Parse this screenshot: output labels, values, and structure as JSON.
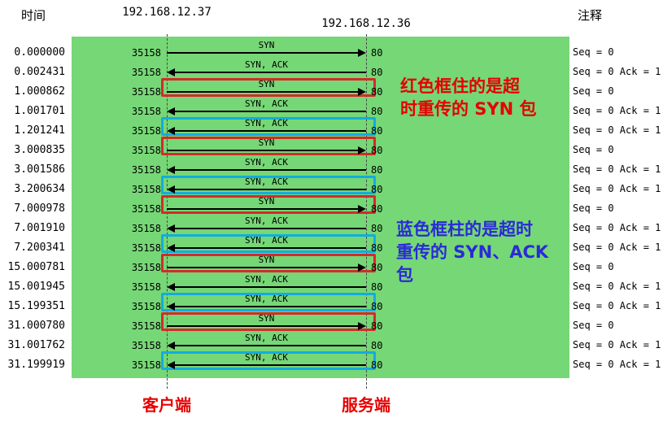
{
  "header": {
    "time_label": "时间",
    "client_ip": "192.168.12.37",
    "server_ip": "192.168.12.36",
    "comments_label": "注释"
  },
  "footer": {
    "client_label": "客户端",
    "server_label": "服务端"
  },
  "annotations": {
    "red_note": "红色框住的是超\n时重传的 SYN 包",
    "blue_note": "蓝色框柱的是超时\n重传的 SYN、ACK\n包"
  },
  "colors": {
    "canvas_green": "#76d776",
    "syn_retrans_box": "#d42a2a",
    "synack_retrans_box": "#12acdf",
    "red_note_color": "#e60000",
    "blue_note_color": "#2a2ad6",
    "endpoint_label": "#e60000"
  },
  "flows": [
    {
      "time": "0.000000",
      "left_port": "35158",
      "right_port": "80",
      "label": "SYN",
      "direction": "right",
      "box": "none",
      "comment": "Seq = 0"
    },
    {
      "time": "0.002431",
      "left_port": "35158",
      "right_port": "80",
      "label": "SYN, ACK",
      "direction": "left",
      "box": "none",
      "comment": "Seq = 0 Ack = 1"
    },
    {
      "time": "1.000862",
      "left_port": "35158",
      "right_port": "80",
      "label": "SYN",
      "direction": "right",
      "box": "red",
      "comment": "Seq = 0"
    },
    {
      "time": "1.001701",
      "left_port": "35158",
      "right_port": "80",
      "label": "SYN, ACK",
      "direction": "left",
      "box": "none",
      "comment": "Seq = 0 Ack = 1"
    },
    {
      "time": "1.201241",
      "left_port": "35158",
      "right_port": "80",
      "label": "SYN, ACK",
      "direction": "left",
      "box": "blue",
      "comment": "Seq = 0 Ack = 1"
    },
    {
      "time": "3.000835",
      "left_port": "35158",
      "right_port": "80",
      "label": "SYN",
      "direction": "right",
      "box": "red",
      "comment": "Seq = 0"
    },
    {
      "time": "3.001586",
      "left_port": "35158",
      "right_port": "80",
      "label": "SYN, ACK",
      "direction": "left",
      "box": "none",
      "comment": "Seq = 0 Ack = 1"
    },
    {
      "time": "3.200634",
      "left_port": "35158",
      "right_port": "80",
      "label": "SYN, ACK",
      "direction": "left",
      "box": "blue",
      "comment": "Seq = 0 Ack = 1"
    },
    {
      "time": "7.000978",
      "left_port": "35158",
      "right_port": "80",
      "label": "SYN",
      "direction": "right",
      "box": "red",
      "comment": "Seq = 0"
    },
    {
      "time": "7.001910",
      "left_port": "35158",
      "right_port": "80",
      "label": "SYN, ACK",
      "direction": "left",
      "box": "none",
      "comment": "Seq = 0 Ack = 1"
    },
    {
      "time": "7.200341",
      "left_port": "35158",
      "right_port": "80",
      "label": "SYN, ACK",
      "direction": "left",
      "box": "blue",
      "comment": "Seq = 0 Ack = 1"
    },
    {
      "time": "15.000781",
      "left_port": "35158",
      "right_port": "80",
      "label": "SYN",
      "direction": "right",
      "box": "red",
      "comment": "Seq = 0"
    },
    {
      "time": "15.001945",
      "left_port": "35158",
      "right_port": "80",
      "label": "SYN, ACK",
      "direction": "left",
      "box": "none",
      "comment": "Seq = 0 Ack = 1"
    },
    {
      "time": "15.199351",
      "left_port": "35158",
      "right_port": "80",
      "label": "SYN, ACK",
      "direction": "left",
      "box": "blue",
      "comment": "Seq = 0 Ack = 1"
    },
    {
      "time": "31.000780",
      "left_port": "35158",
      "right_port": "80",
      "label": "SYN",
      "direction": "right",
      "box": "red",
      "comment": "Seq = 0"
    },
    {
      "time": "31.001762",
      "left_port": "35158",
      "right_port": "80",
      "label": "SYN, ACK",
      "direction": "left",
      "box": "none",
      "comment": "Seq = 0 Ack = 1"
    },
    {
      "time": "31.199919",
      "left_port": "35158",
      "right_port": "80",
      "label": "SYN, ACK",
      "direction": "left",
      "box": "blue",
      "comment": "Seq = 0 Ack = 1"
    }
  ]
}
